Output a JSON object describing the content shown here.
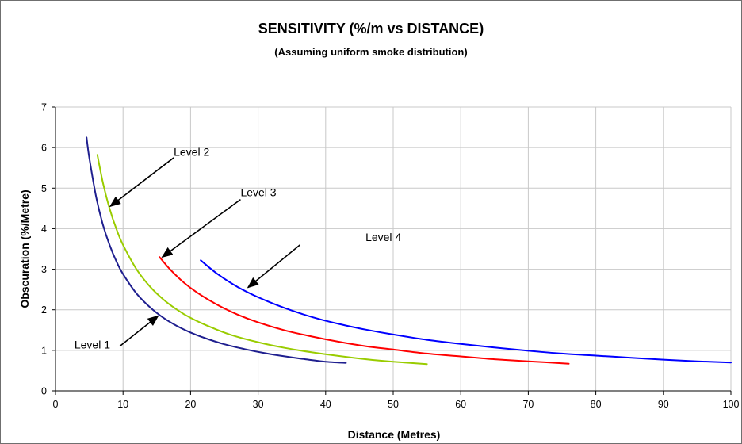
{
  "chart_data": {
    "type": "line",
    "title": "SENSITIVITY (%/m vs DISTANCE)",
    "subtitle": "(Assuming uniform smoke distribution)",
    "xlabel": "Distance (Metres)",
    "ylabel": "Obscuration (%/Metre)",
    "xlim": [
      0,
      100
    ],
    "ylim": [
      0,
      7
    ],
    "xticks": [
      "0",
      "10",
      "20",
      "30",
      "40",
      "50",
      "60",
      "70",
      "80",
      "90",
      "100"
    ],
    "yticks": [
      "0",
      "1",
      "2",
      "3",
      "4",
      "5",
      "6",
      "7"
    ],
    "grid": true,
    "legend": "none",
    "series": [
      {
        "name": "Level 1",
        "color": "#1f1f8f",
        "x": [
          4.6,
          5,
          6,
          7,
          8,
          9,
          10,
          12,
          14,
          16,
          18,
          20,
          22,
          25,
          28,
          31,
          34,
          37,
          40,
          43
        ],
        "y": [
          6.25,
          5.75,
          4.8,
          4.11,
          3.6,
          3.2,
          2.88,
          2.4,
          2.06,
          1.8,
          1.6,
          1.44,
          1.31,
          1.15,
          1.03,
          0.93,
          0.85,
          0.78,
          0.72,
          0.69
        ]
      },
      {
        "name": "Level 2",
        "color": "#99cc00",
        "x": [
          6.2,
          7,
          8,
          9,
          10,
          12,
          14,
          16,
          18,
          20,
          23,
          26,
          30,
          34,
          38,
          42,
          46,
          50,
          55
        ],
        "y": [
          5.82,
          5.15,
          4.5,
          4.0,
          3.6,
          3.0,
          2.57,
          2.25,
          2.0,
          1.8,
          1.57,
          1.38,
          1.2,
          1.06,
          0.95,
          0.86,
          0.78,
          0.72,
          0.66
        ]
      },
      {
        "name": "Level 3",
        "color": "#ff0000",
        "x": [
          15.4,
          17,
          19,
          21,
          24,
          27,
          30,
          34,
          38,
          42,
          46,
          50,
          55,
          60,
          65,
          70,
          76
        ],
        "y": [
          3.3,
          2.99,
          2.67,
          2.42,
          2.12,
          1.88,
          1.69,
          1.49,
          1.34,
          1.21,
          1.1,
          1.02,
          0.92,
          0.85,
          0.78,
          0.73,
          0.67
        ]
      },
      {
        "name": "Level 4",
        "color": "#0000ff",
        "x": [
          21.5,
          24,
          27,
          30,
          34,
          38,
          42,
          46,
          50,
          55,
          60,
          65,
          70,
          75,
          80,
          85,
          90,
          95,
          100
        ],
        "y": [
          3.22,
          2.88,
          2.56,
          2.31,
          2.04,
          1.82,
          1.65,
          1.51,
          1.39,
          1.26,
          1.16,
          1.07,
          0.99,
          0.92,
          0.87,
          0.82,
          0.77,
          0.73,
          0.7
        ]
      }
    ],
    "annotations": [
      {
        "text": "Level 1",
        "text_at": [
          2.8,
          1.05
        ],
        "arrow_from": [
          9.5,
          1.1
        ],
        "arrow_to": [
          15.2,
          1.85
        ]
      },
      {
        "text": "Level 2",
        "text_at": [
          17.5,
          5.8
        ],
        "arrow_from": [
          17.5,
          5.75
        ],
        "arrow_to": [
          8.1,
          4.55
        ]
      },
      {
        "text": "Level 3",
        "text_at": [
          27.4,
          4.8
        ],
        "arrow_from": [
          27.4,
          4.72
        ],
        "arrow_to": [
          15.8,
          3.3
        ]
      },
      {
        "text": "Level 4",
        "text_at": [
          45.9,
          3.7
        ],
        "arrow_from": [
          36.2,
          3.6
        ],
        "arrow_to": [
          28.5,
          2.55
        ]
      }
    ]
  }
}
